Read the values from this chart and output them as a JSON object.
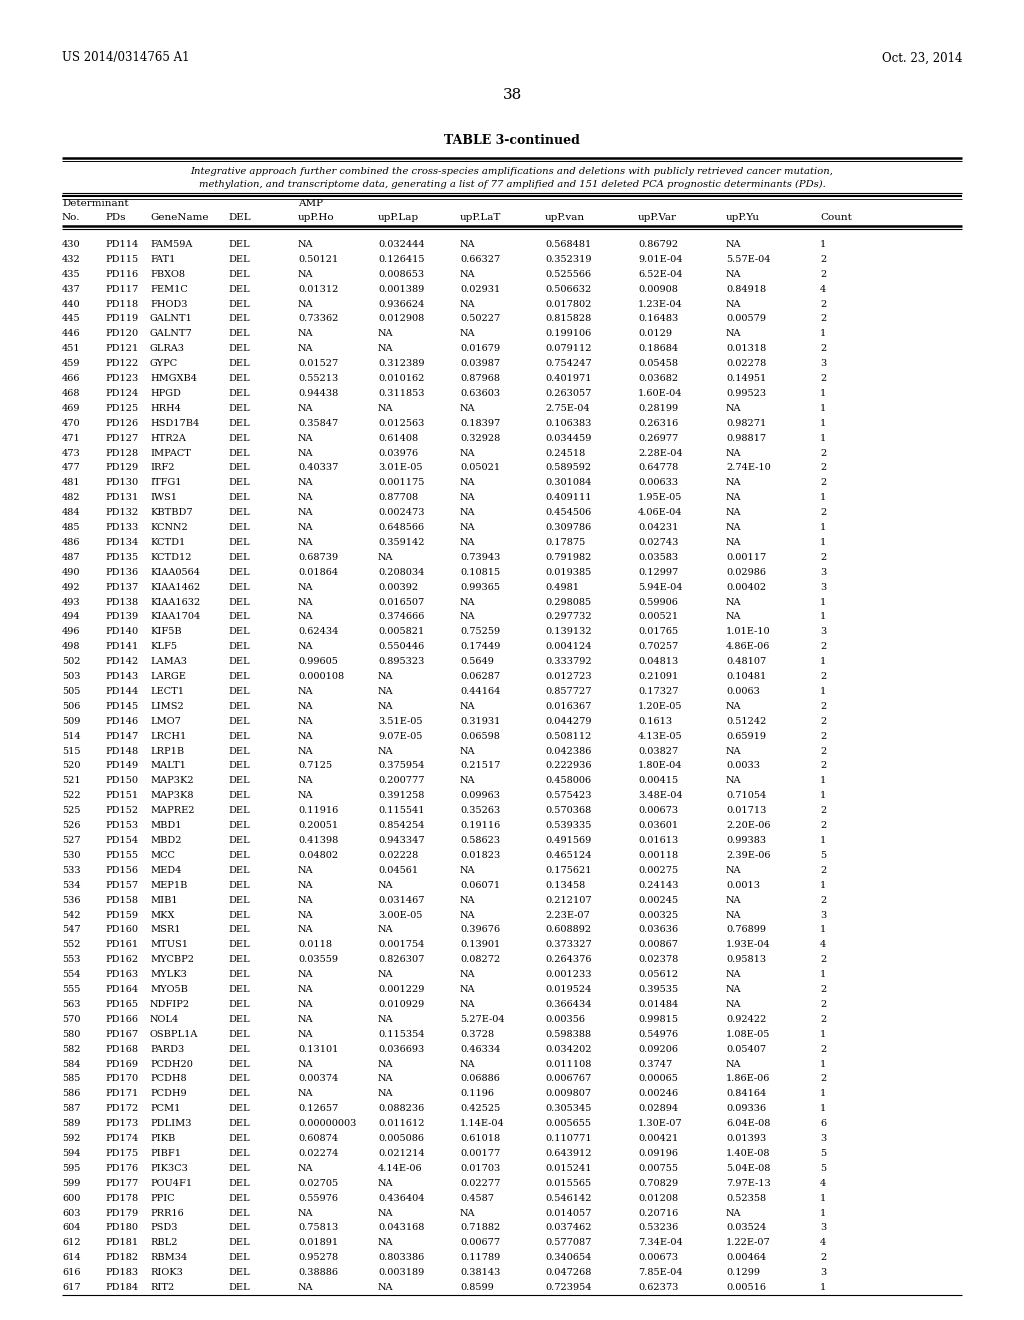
{
  "header_text_left": "US 2014/0314765 A1",
  "header_text_right": "Oct. 23, 2014",
  "page_number": "38",
  "table_title": "TABLE 3-continued",
  "caption_line1": "Integrative approach further combined the cross-species amplifications and deletions with publicly retrieved cancer mutation,",
  "caption_line2": "methylation, and transcriptome data, generating a list of 77 amplified and 151 deleted PCA prognostic determinants (PDs).",
  "col_headers_line2": [
    "No.",
    "PDs",
    "GeneName",
    "DEL",
    "upP.Ho",
    "upP.Lap",
    "upP.LaT",
    "upP.van",
    "upP.Var",
    "upP.Yu",
    "Count"
  ],
  "rows": [
    [
      "430",
      "PD114",
      "FAM59A",
      "DEL",
      "NA",
      "0.032444",
      "NA",
      "0.568481",
      "0.86792",
      "NA",
      "1"
    ],
    [
      "432",
      "PD115",
      "FAT1",
      "DEL",
      "0.50121",
      "0.126415",
      "0.66327",
      "0.352319",
      "9.01E-04",
      "5.57E-04",
      "2"
    ],
    [
      "435",
      "PD116",
      "FBXO8",
      "DEL",
      "NA",
      "0.008653",
      "NA",
      "0.525566",
      "6.52E-04",
      "NA",
      "2"
    ],
    [
      "437",
      "PD117",
      "FEM1C",
      "DEL",
      "0.01312",
      "0.001389",
      "0.02931",
      "0.506632",
      "0.00908",
      "0.84918",
      "4"
    ],
    [
      "440",
      "PD118",
      "FHOD3",
      "DEL",
      "NA",
      "0.936624",
      "NA",
      "0.017802",
      "1.23E-04",
      "NA",
      "2"
    ],
    [
      "445",
      "PD119",
      "GALNT1",
      "DEL",
      "0.73362",
      "0.012908",
      "0.50227",
      "0.815828",
      "0.16483",
      "0.00579",
      "2"
    ],
    [
      "446",
      "PD120",
      "GALNT7",
      "DEL",
      "NA",
      "NA",
      "NA",
      "0.199106",
      "0.0129",
      "NA",
      "1"
    ],
    [
      "451",
      "PD121",
      "GLRA3",
      "DEL",
      "NA",
      "NA",
      "0.01679",
      "0.079112",
      "0.18684",
      "0.01318",
      "2"
    ],
    [
      "459",
      "PD122",
      "GYPC",
      "DEL",
      "0.01527",
      "0.312389",
      "0.03987",
      "0.754247",
      "0.05458",
      "0.02278",
      "3"
    ],
    [
      "466",
      "PD123",
      "HMGXB4",
      "DEL",
      "0.55213",
      "0.010162",
      "0.87968",
      "0.401971",
      "0.03682",
      "0.14951",
      "2"
    ],
    [
      "468",
      "PD124",
      "HPGD",
      "DEL",
      "0.94438",
      "0.311853",
      "0.63603",
      "0.263057",
      "1.60E-04",
      "0.99523",
      "1"
    ],
    [
      "469",
      "PD125",
      "HRH4",
      "DEL",
      "NA",
      "NA",
      "NA",
      "2.75E-04",
      "0.28199",
      "NA",
      "1"
    ],
    [
      "470",
      "PD126",
      "HSD17B4",
      "DEL",
      "0.35847",
      "0.012563",
      "0.18397",
      "0.106383",
      "0.26316",
      "0.98271",
      "1"
    ],
    [
      "471",
      "PD127",
      "HTR2A",
      "DEL",
      "NA",
      "0.61408",
      "0.32928",
      "0.034459",
      "0.26977",
      "0.98817",
      "1"
    ],
    [
      "473",
      "PD128",
      "IMPACT",
      "DEL",
      "NA",
      "0.03976",
      "NA",
      "0.24518",
      "2.28E-04",
      "NA",
      "2"
    ],
    [
      "477",
      "PD129",
      "IRF2",
      "DEL",
      "0.40337",
      "3.01E-05",
      "0.05021",
      "0.589592",
      "0.64778",
      "2.74E-10",
      "2"
    ],
    [
      "481",
      "PD130",
      "ITFG1",
      "DEL",
      "NA",
      "0.001175",
      "NA",
      "0.301084",
      "0.00633",
      "NA",
      "2"
    ],
    [
      "482",
      "PD131",
      "IWS1",
      "DEL",
      "NA",
      "0.87708",
      "NA",
      "0.409111",
      "1.95E-05",
      "NA",
      "1"
    ],
    [
      "484",
      "PD132",
      "KBTBD7",
      "DEL",
      "NA",
      "0.002473",
      "NA",
      "0.454506",
      "4.06E-04",
      "NA",
      "2"
    ],
    [
      "485",
      "PD133",
      "KCNN2",
      "DEL",
      "NA",
      "0.648566",
      "NA",
      "0.309786",
      "0.04231",
      "NA",
      "1"
    ],
    [
      "486",
      "PD134",
      "KCTD1",
      "DEL",
      "NA",
      "0.359142",
      "NA",
      "0.17875",
      "0.02743",
      "NA",
      "1"
    ],
    [
      "487",
      "PD135",
      "KCTD12",
      "DEL",
      "0.68739",
      "NA",
      "0.73943",
      "0.791982",
      "0.03583",
      "0.00117",
      "2"
    ],
    [
      "490",
      "PD136",
      "KIAA0564",
      "DEL",
      "0.01864",
      "0.208034",
      "0.10815",
      "0.019385",
      "0.12997",
      "0.02986",
      "3"
    ],
    [
      "492",
      "PD137",
      "KIAA1462",
      "DEL",
      "NA",
      "0.00392",
      "0.99365",
      "0.4981",
      "5.94E-04",
      "0.00402",
      "3"
    ],
    [
      "493",
      "PD138",
      "KIAA1632",
      "DEL",
      "NA",
      "0.016507",
      "NA",
      "0.298085",
      "0.59906",
      "NA",
      "1"
    ],
    [
      "494",
      "PD139",
      "KIAA1704",
      "DEL",
      "NA",
      "0.374666",
      "NA",
      "0.297732",
      "0.00521",
      "NA",
      "1"
    ],
    [
      "496",
      "PD140",
      "KIF5B",
      "DEL",
      "0.62434",
      "0.005821",
      "0.75259",
      "0.139132",
      "0.01765",
      "1.01E-10",
      "3"
    ],
    [
      "498",
      "PD141",
      "KLF5",
      "DEL",
      "NA",
      "0.550446",
      "0.17449",
      "0.004124",
      "0.70257",
      "4.86E-06",
      "2"
    ],
    [
      "502",
      "PD142",
      "LAMA3",
      "DEL",
      "0.99605",
      "0.895323",
      "0.5649",
      "0.333792",
      "0.04813",
      "0.48107",
      "1"
    ],
    [
      "503",
      "PD143",
      "LARGE",
      "DEL",
      "0.000108",
      "NA",
      "0.06287",
      "0.012723",
      "0.21091",
      "0.10481",
      "2"
    ],
    [
      "505",
      "PD144",
      "LECT1",
      "DEL",
      "NA",
      "NA",
      "0.44164",
      "0.857727",
      "0.17327",
      "0.0063",
      "1"
    ],
    [
      "506",
      "PD145",
      "LIMS2",
      "DEL",
      "NA",
      "NA",
      "NA",
      "0.016367",
      "1.20E-05",
      "NA",
      "2"
    ],
    [
      "509",
      "PD146",
      "LMO7",
      "DEL",
      "NA",
      "3.51E-05",
      "0.31931",
      "0.044279",
      "0.1613",
      "0.51242",
      "2"
    ],
    [
      "514",
      "PD147",
      "LRCH1",
      "DEL",
      "NA",
      "9.07E-05",
      "0.06598",
      "0.508112",
      "4.13E-05",
      "0.65919",
      "2"
    ],
    [
      "515",
      "PD148",
      "LRP1B",
      "DEL",
      "NA",
      "NA",
      "NA",
      "0.042386",
      "0.03827",
      "NA",
      "2"
    ],
    [
      "520",
      "PD149",
      "MALT1",
      "DEL",
      "0.7125",
      "0.375954",
      "0.21517",
      "0.222936",
      "1.80E-04",
      "0.0033",
      "2"
    ],
    [
      "521",
      "PD150",
      "MAP3K2",
      "DEL",
      "NA",
      "0.200777",
      "NA",
      "0.458006",
      "0.00415",
      "NA",
      "1"
    ],
    [
      "522",
      "PD151",
      "MAP3K8",
      "DEL",
      "NA",
      "0.391258",
      "0.09963",
      "0.575423",
      "3.48E-04",
      "0.71054",
      "1"
    ],
    [
      "525",
      "PD152",
      "MAPRE2",
      "DEL",
      "0.11916",
      "0.115541",
      "0.35263",
      "0.570368",
      "0.00673",
      "0.01713",
      "2"
    ],
    [
      "526",
      "PD153",
      "MBD1",
      "DEL",
      "0.20051",
      "0.854254",
      "0.19116",
      "0.539335",
      "0.03601",
      "2.20E-06",
      "2"
    ],
    [
      "527",
      "PD154",
      "MBD2",
      "DEL",
      "0.41398",
      "0.943347",
      "0.58623",
      "0.491569",
      "0.01613",
      "0.99383",
      "1"
    ],
    [
      "530",
      "PD155",
      "MCC",
      "DEL",
      "0.04802",
      "0.02228",
      "0.01823",
      "0.465124",
      "0.00118",
      "2.39E-06",
      "5"
    ],
    [
      "533",
      "PD156",
      "MED4",
      "DEL",
      "NA",
      "0.04561",
      "NA",
      "0.175621",
      "0.00275",
      "NA",
      "2"
    ],
    [
      "534",
      "PD157",
      "MEP1B",
      "DEL",
      "NA",
      "NA",
      "0.06071",
      "0.13458",
      "0.24143",
      "0.0013",
      "1"
    ],
    [
      "536",
      "PD158",
      "MIB1",
      "DEL",
      "NA",
      "0.031467",
      "NA",
      "0.212107",
      "0.00245",
      "NA",
      "2"
    ],
    [
      "542",
      "PD159",
      "MKX",
      "DEL",
      "NA",
      "3.00E-05",
      "NA",
      "2.23E-07",
      "0.00325",
      "NA",
      "3"
    ],
    [
      "547",
      "PD160",
      "MSR1",
      "DEL",
      "NA",
      "NA",
      "0.39676",
      "0.608892",
      "0.03636",
      "0.76899",
      "1"
    ],
    [
      "552",
      "PD161",
      "MTUS1",
      "DEL",
      "0.0118",
      "0.001754",
      "0.13901",
      "0.373327",
      "0.00867",
      "1.93E-04",
      "4"
    ],
    [
      "553",
      "PD162",
      "MYCBP2",
      "DEL",
      "0.03559",
      "0.826307",
      "0.08272",
      "0.264376",
      "0.02378",
      "0.95813",
      "2"
    ],
    [
      "554",
      "PD163",
      "MYLK3",
      "DEL",
      "NA",
      "NA",
      "NA",
      "0.001233",
      "0.05612",
      "NA",
      "1"
    ],
    [
      "555",
      "PD164",
      "MYO5B",
      "DEL",
      "NA",
      "0.001229",
      "NA",
      "0.019524",
      "0.39535",
      "NA",
      "2"
    ],
    [
      "563",
      "PD165",
      "NDFIP2",
      "DEL",
      "NA",
      "0.010929",
      "NA",
      "0.366434",
      "0.01484",
      "NA",
      "2"
    ],
    [
      "570",
      "PD166",
      "NOL4",
      "DEL",
      "NA",
      "NA",
      "5.27E-04",
      "0.00356",
      "0.99815",
      "0.92422",
      "2"
    ],
    [
      "580",
      "PD167",
      "OSBPL1A",
      "DEL",
      "NA",
      "0.115354",
      "0.3728",
      "0.598388",
      "0.54976",
      "1.08E-05",
      "1"
    ],
    [
      "582",
      "PD168",
      "PARD3",
      "DEL",
      "0.13101",
      "0.036693",
      "0.46334",
      "0.034202",
      "0.09206",
      "0.05407",
      "2"
    ],
    [
      "584",
      "PD169",
      "PCDH20",
      "DEL",
      "NA",
      "NA",
      "NA",
      "0.011108",
      "0.3747",
      "NA",
      "1"
    ],
    [
      "585",
      "PD170",
      "PCDH8",
      "DEL",
      "0.00374",
      "NA",
      "0.06886",
      "0.006767",
      "0.00065",
      "1.86E-06",
      "2"
    ],
    [
      "586",
      "PD171",
      "PCDH9",
      "DEL",
      "NA",
      "NA",
      "0.1196",
      "0.009807",
      "0.00246",
      "0.84164",
      "1"
    ],
    [
      "587",
      "PD172",
      "PCM1",
      "DEL",
      "0.12657",
      "0.088236",
      "0.42525",
      "0.305345",
      "0.02894",
      "0.09336",
      "1"
    ],
    [
      "589",
      "PD173",
      "PDLIM3",
      "DEL",
      "0.00000003",
      "0.011612",
      "1.14E-04",
      "0.005655",
      "1.30E-07",
      "6.04E-08",
      "6"
    ],
    [
      "592",
      "PD174",
      "PIKB",
      "DEL",
      "0.60874",
      "0.005086",
      "0.61018",
      "0.110771",
      "0.00421",
      "0.01393",
      "3"
    ],
    [
      "594",
      "PD175",
      "PIBF1",
      "DEL",
      "0.02274",
      "0.021214",
      "0.00177",
      "0.643912",
      "0.09196",
      "1.40E-08",
      "5"
    ],
    [
      "595",
      "PD176",
      "PIK3C3",
      "DEL",
      "NA",
      "4.14E-06",
      "0.01703",
      "0.015241",
      "0.00755",
      "5.04E-08",
      "5"
    ],
    [
      "599",
      "PD177",
      "POU4F1",
      "DEL",
      "0.02705",
      "NA",
      "0.02277",
      "0.015565",
      "0.70829",
      "7.97E-13",
      "4"
    ],
    [
      "600",
      "PD178",
      "PPIC",
      "DEL",
      "0.55976",
      "0.436404",
      "0.4587",
      "0.546142",
      "0.01208",
      "0.52358",
      "1"
    ],
    [
      "603",
      "PD179",
      "PRR16",
      "DEL",
      "NA",
      "NA",
      "NA",
      "0.014057",
      "0.20716",
      "NA",
      "1"
    ],
    [
      "604",
      "PD180",
      "PSD3",
      "DEL",
      "0.75813",
      "0.043168",
      "0.71882",
      "0.037462",
      "0.53236",
      "0.03524",
      "3"
    ],
    [
      "612",
      "PD181",
      "RBL2",
      "DEL",
      "0.01891",
      "NA",
      "0.00677",
      "0.577087",
      "7.34E-04",
      "1.22E-07",
      "4"
    ],
    [
      "614",
      "PD182",
      "RBM34",
      "DEL",
      "0.95278",
      "0.803386",
      "0.11789",
      "0.340654",
      "0.00673",
      "0.00464",
      "2"
    ],
    [
      "616",
      "PD183",
      "RIOK3",
      "DEL",
      "0.38886",
      "0.003189",
      "0.38143",
      "0.047268",
      "7.85E-04",
      "0.1299",
      "3"
    ],
    [
      "617",
      "PD184",
      "RIT2",
      "DEL",
      "NA",
      "NA",
      "0.8599",
      "0.723954",
      "0.62373",
      "0.00516",
      "1"
    ]
  ]
}
